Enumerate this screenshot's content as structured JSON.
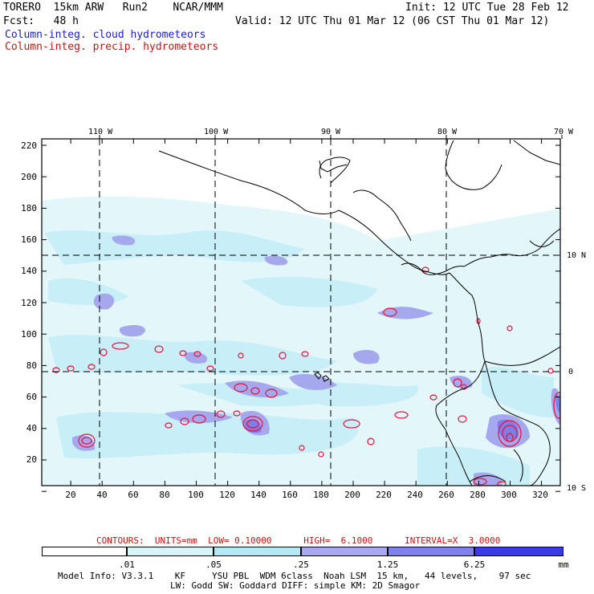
{
  "header": {
    "line1_left": "TORERO  15km ARW   Run2    NCAR/MMM",
    "line1_right": "Init: 12 UTC Tue 28 Feb 12",
    "line2_left": "Fcst:   48 h",
    "line2_right": "Valid: 12 UTC Thu 01 Mar 12 (06 CST Thu 01 Mar 12)",
    "legend_cloud": "Column-integ. cloud hydrometeors",
    "legend_precip": "Column-integ. precip. hydrometeors"
  },
  "map": {
    "lon_labels": [
      "110 W",
      "100 W",
      "90 W",
      "80 W",
      "70 W"
    ],
    "lat_labels": [
      "10 N",
      "0",
      "10 S"
    ],
    "y_ticks": [
      "220",
      "200",
      "180",
      "160",
      "140",
      "120",
      "100",
      "80",
      "60",
      "40",
      "20"
    ],
    "x_ticks": [
      "20",
      "40",
      "60",
      "80",
      "100",
      "120",
      "140",
      "160",
      "180",
      "200",
      "220",
      "240",
      "260",
      "280",
      "300",
      "320"
    ],
    "colors": {
      "cloud_light": "#dff6fb",
      "cloud_mid": "#b9e9f6",
      "cloud_dark": "#9aa0ee",
      "cloud_deep": "#6e6ee6",
      "precip": "#e8103a",
      "coast": "#000000"
    }
  },
  "contours": {
    "label": "CONTOURS:  UNITS=mm  LOW= 0.10000      HIGH=  6.1000      INTERVAL=X  3.0000"
  },
  "colorbar": {
    "labels": [
      ".01",
      ".05",
      ".25",
      "1.25",
      "6.25"
    ],
    "unit": "mm",
    "colors": [
      "#ffffff",
      "#d8f6fa",
      "#b5e8f5",
      "#a9a9f2",
      "#8080ee",
      "#5050e8",
      "#1e1ee8"
    ]
  },
  "footer": {
    "line1": "Model Info: V3.3.1    KF     YSU PBL  WDM 6class  Noah LSM  15 km,   44 levels,    97 sec",
    "line2": "LW: Godd SW: Goddard DIFF: simple KM: 2D Smagor"
  }
}
